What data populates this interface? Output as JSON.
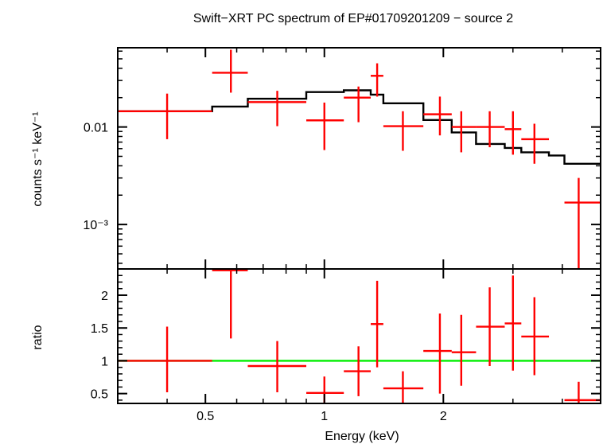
{
  "chart_data": [
    {
      "type": "scatter",
      "title": "Swift−XRT PC spectrum of EP#01709201209 − source 2",
      "ylabel": "counts s⁻¹ keV⁻¹",
      "xscale": "log",
      "yscale": "log",
      "xlim": [
        0.3,
        5.0
      ],
      "ylim": [
        0.00035,
        0.065
      ],
      "y_ticks": [
        {
          "value": 0.01,
          "label": "0.01"
        },
        {
          "value": 0.001,
          "label": "10⁻³"
        }
      ],
      "series": [
        {
          "kind": "data",
          "color": "#ff0000",
          "points": [
            {
              "x": 0.4,
              "xlo": 0.3,
              "xhi": 0.52,
              "y": 0.0145,
              "ylo": 0.0075,
              "yhi": 0.022
            },
            {
              "x": 0.58,
              "xlo": 0.52,
              "xhi": 0.64,
              "y": 0.036,
              "ylo": 0.0225,
              "yhi": 0.062
            },
            {
              "x": 0.76,
              "xlo": 0.64,
              "xhi": 0.9,
              "y": 0.018,
              "ylo": 0.0102,
              "yhi": 0.0235
            },
            {
              "x": 1.0,
              "xlo": 0.9,
              "xhi": 1.12,
              "y": 0.0117,
              "ylo": 0.0058,
              "yhi": 0.0178
            },
            {
              "x": 1.22,
              "xlo": 1.12,
              "xhi": 1.31,
              "y": 0.02,
              "ylo": 0.0112,
              "yhi": 0.026
            },
            {
              "x": 1.36,
              "xlo": 1.31,
              "xhi": 1.41,
              "y": 0.0335,
              "ylo": 0.0205,
              "yhi": 0.045
            },
            {
              "x": 1.58,
              "xlo": 1.41,
              "xhi": 1.78,
              "y": 0.0102,
              "ylo": 0.0057,
              "yhi": 0.0145
            },
            {
              "x": 1.96,
              "xlo": 1.78,
              "xhi": 2.1,
              "y": 0.0135,
              "ylo": 0.0082,
              "yhi": 0.0205
            },
            {
              "x": 2.22,
              "xlo": 2.1,
              "xhi": 2.42,
              "y": 0.01,
              "ylo": 0.0055,
              "yhi": 0.0145
            },
            {
              "x": 2.62,
              "xlo": 2.42,
              "xhi": 2.86,
              "y": 0.01,
              "ylo": 0.0062,
              "yhi": 0.0145
            },
            {
              "x": 3.0,
              "xlo": 2.86,
              "xhi": 3.15,
              "y": 0.0095,
              "ylo": 0.0052,
              "yhi": 0.0145
            },
            {
              "x": 3.4,
              "xlo": 3.15,
              "xhi": 3.7,
              "y": 0.0075,
              "ylo": 0.0042,
              "yhi": 0.0108
            },
            {
              "x": 4.4,
              "xlo": 4.05,
              "xhi": 5.0,
              "y": 0.00168,
              "ylo": 0.00035,
              "yhi": 0.003
            }
          ]
        },
        {
          "kind": "model-step",
          "color": "#000000",
          "steps": [
            {
              "x0": 0.3,
              "x1": 0.52,
              "y": 0.0145
            },
            {
              "x0": 0.52,
              "x1": 0.64,
              "y": 0.0162
            },
            {
              "x0": 0.64,
              "x1": 0.9,
              "y": 0.0195
            },
            {
              "x0": 0.9,
              "x1": 1.12,
              "y": 0.0228
            },
            {
              "x0": 1.12,
              "x1": 1.31,
              "y": 0.0238
            },
            {
              "x0": 1.31,
              "x1": 1.41,
              "y": 0.0215
            },
            {
              "x0": 1.41,
              "x1": 1.78,
              "y": 0.0175
            },
            {
              "x0": 1.78,
              "x1": 2.1,
              "y": 0.0118
            },
            {
              "x0": 2.1,
              "x1": 2.42,
              "y": 0.0088
            },
            {
              "x0": 2.42,
              "x1": 2.86,
              "y": 0.0067
            },
            {
              "x0": 2.86,
              "x1": 3.15,
              "y": 0.0061
            },
            {
              "x0": 3.15,
              "x1": 3.7,
              "y": 0.0055
            },
            {
              "x0": 3.7,
              "x1": 4.05,
              "y": 0.0051
            },
            {
              "x0": 4.05,
              "x1": 5.0,
              "y": 0.0042
            }
          ]
        }
      ]
    },
    {
      "type": "scatter",
      "xlabel": "Energy (keV)",
      "ylabel": "ratio",
      "xscale": "log",
      "xlim": [
        0.3,
        5.0
      ],
      "ylim": [
        0.35,
        2.4
      ],
      "x_ticks": [
        {
          "value": 0.5,
          "label": "0.5"
        },
        {
          "value": 1,
          "label": "1"
        },
        {
          "value": 2,
          "label": "2"
        }
      ],
      "y_ticks": [
        {
          "value": 0.5,
          "label": "0.5"
        },
        {
          "value": 1,
          "label": "1"
        },
        {
          "value": 1.5,
          "label": "1.5"
        },
        {
          "value": 2,
          "label": "2"
        }
      ],
      "series": [
        {
          "kind": "data",
          "color": "#ff0000",
          "points": [
            {
              "x": 0.4,
              "xlo": 0.3,
              "xhi": 0.52,
              "y": 1.0,
              "ylo": 0.52,
              "yhi": 1.52
            },
            {
              "x": 0.58,
              "xlo": 0.52,
              "xhi": 0.64,
              "y": 2.38,
              "ylo": 1.34,
              "yhi": 2.4
            },
            {
              "x": 0.76,
              "xlo": 0.64,
              "xhi": 0.9,
              "y": 0.92,
              "ylo": 0.52,
              "yhi": 1.3
            },
            {
              "x": 1.0,
              "xlo": 0.9,
              "xhi": 1.12,
              "y": 0.51,
              "ylo": 0.35,
              "yhi": 0.76
            },
            {
              "x": 1.22,
              "xlo": 1.12,
              "xhi": 1.31,
              "y": 0.84,
              "ylo": 0.46,
              "yhi": 1.22
            },
            {
              "x": 1.36,
              "xlo": 1.31,
              "xhi": 1.41,
              "y": 1.56,
              "ylo": 0.9,
              "yhi": 2.22
            },
            {
              "x": 1.58,
              "xlo": 1.41,
              "xhi": 1.78,
              "y": 0.58,
              "ylo": 0.32,
              "yhi": 0.84
            },
            {
              "x": 1.96,
              "xlo": 1.78,
              "xhi": 2.1,
              "y": 1.15,
              "ylo": 0.5,
              "yhi": 1.72
            },
            {
              "x": 2.22,
              "xlo": 2.1,
              "xhi": 2.42,
              "y": 1.13,
              "ylo": 0.62,
              "yhi": 1.7
            },
            {
              "x": 2.62,
              "xlo": 2.42,
              "xhi": 2.86,
              "y": 1.52,
              "ylo": 0.92,
              "yhi": 2.12
            },
            {
              "x": 3.0,
              "xlo": 2.86,
              "xhi": 3.15,
              "y": 1.57,
              "ylo": 0.85,
              "yhi": 2.3
            },
            {
              "x": 3.4,
              "xlo": 3.15,
              "xhi": 3.7,
              "y": 1.37,
              "ylo": 0.78,
              "yhi": 1.97
            },
            {
              "x": 4.4,
              "xlo": 4.05,
              "xhi": 5.0,
              "y": 0.4,
              "ylo": 0.3,
              "yhi": 0.68
            }
          ]
        },
        {
          "kind": "reference-line",
          "color": "#00ee00",
          "y": 1.0
        }
      ]
    }
  ]
}
